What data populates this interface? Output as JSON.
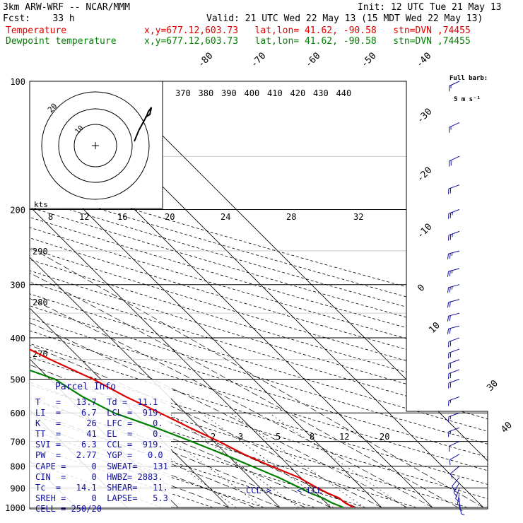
{
  "header": {
    "title": "3km ARW-WRF -- NCAR/MMM",
    "init": "Init: 12 UTC Tue 21 May 13",
    "fcst": "Fcst:    33 h",
    "valid": "Valid: 21 UTC Wed 22 May 13 (15 MDT Wed 22 May 13)",
    "temp_label": "Temperature",
    "dew_label": "Dewpoint temperature",
    "loc_info": "x,y=677.12,603.73   lat,lon= 41.62, -90.58   stn=DVN ,74455"
  },
  "barb_legend": {
    "line1": "Full barb:",
    "line2": "5 m s⁻¹"
  },
  "parcel": {
    "title": "Parcel Info",
    "rows": [
      "T   =   13.7  Td =  11.1",
      "LI  =    6.7  LCL =  919.",
      "K   =     26  LFC =    0.",
      "TT  =     41  EL  =    0.",
      "SVI =    6.3  CCL =  919.",
      "PW  =   2.77  YGP =   0.0",
      "CAPE =     0  SWEAT=   131",
      "CIN  =     0  HWBZ= 2883.",
      "Tc  =   14.1  SHEAR=   11.",
      "SREH =     0  LAPSE=   5.3",
      "CELL = 250/20"
    ]
  },
  "markers": {
    "ccl": "CCL->",
    "lcl": "<-LCL"
  },
  "hodo": {
    "ring_label": "20",
    "inner_label": "10",
    "kts_label": "kts"
  },
  "chart_data": {
    "type": "line",
    "ylabel_unit": "hPa",
    "pressure_ticks": [
      100,
      200,
      300,
      400,
      500,
      600,
      700,
      800,
      900,
      1000
    ],
    "ylim": [
      1000,
      100
    ],
    "isotherm_labels": [
      "-80",
      "-70",
      "-60",
      "-50",
      "-40",
      "-30",
      "-20",
      "-10",
      "0",
      "10",
      "30",
      "40"
    ],
    "theta_e_labels": [
      "370",
      "380",
      "390",
      "400",
      "410",
      "420",
      "430",
      "440"
    ],
    "mixing_labels_top": [
      "8",
      "12",
      "16",
      "20",
      "24",
      "28",
      "32"
    ],
    "mixing_labels_low": [
      "2",
      "3",
      "5",
      "8",
      "12",
      "20"
    ],
    "theta_labels": [
      "290",
      "280",
      "270"
    ],
    "series": [
      {
        "name": "Temperature",
        "color": "#e00000",
        "points": [
          [
            1000,
            14.5
          ],
          [
            975,
            13.7
          ],
          [
            950,
            13.5
          ],
          [
            925,
            12.2
          ],
          [
            900,
            11.2
          ],
          [
            850,
            9.6
          ],
          [
            800,
            6.4
          ],
          [
            750,
            3.4
          ],
          [
            700,
            1.0
          ],
          [
            650,
            -2.0
          ],
          [
            600,
            -5.0
          ],
          [
            550,
            -8.5
          ],
          [
            500,
            -11.5
          ],
          [
            450,
            -16.0
          ],
          [
            400,
            -20.5
          ],
          [
            350,
            -27.0
          ],
          [
            300,
            -34.5
          ],
          [
            275,
            -39.0
          ],
          [
            250,
            -42.5
          ],
          [
            225,
            -45.0
          ],
          [
            200,
            -48.5
          ],
          [
            175,
            -52.0
          ],
          [
            150,
            -55.0
          ],
          [
            125,
            -58.0
          ],
          [
            100,
            -59.0
          ]
        ]
      },
      {
        "name": "Dewpoint temperature",
        "color": "#008000",
        "points": [
          [
            1000,
            12.5
          ],
          [
            975,
            11.1
          ],
          [
            950,
            10.3
          ],
          [
            925,
            8.8
          ],
          [
            900,
            7.8
          ],
          [
            850,
            5.6
          ],
          [
            800,
            2.6
          ],
          [
            750,
            -0.6
          ],
          [
            700,
            -4.4
          ],
          [
            650,
            -8.7
          ],
          [
            600,
            -14.0
          ],
          [
            550,
            -17.0
          ],
          [
            500,
            -19.0
          ],
          [
            450,
            -26.0
          ],
          [
            400,
            -30.5
          ],
          [
            350,
            -37.0
          ],
          [
            300,
            -47.0
          ],
          [
            250,
            -63.0
          ],
          [
            225,
            -74.0
          ],
          [
            200,
            -76.0
          ],
          [
            175,
            -76.0
          ],
          [
            150,
            -79.0
          ],
          [
            125,
            -80.5
          ],
          [
            100,
            -81.0
          ]
        ]
      }
    ],
    "hodograph": [
      [
        0,
        0
      ],
      [
        3,
        8
      ],
      [
        6,
        14
      ],
      [
        8,
        18
      ],
      [
        9,
        21
      ],
      [
        11,
        24
      ],
      [
        10,
        19
      ],
      [
        7,
        17
      ]
    ],
    "wind_barbs": [
      {
        "p": 100,
        "dir": 245,
        "spd": 14
      },
      {
        "p": 125,
        "dir": 245,
        "spd": 15
      },
      {
        "p": 150,
        "dir": 245,
        "spd": 20
      },
      {
        "p": 175,
        "dir": 250,
        "spd": 20
      },
      {
        "p": 200,
        "dir": 250,
        "spd": 25
      },
      {
        "p": 225,
        "dir": 250,
        "spd": 25
      },
      {
        "p": 250,
        "dir": 255,
        "spd": 25
      },
      {
        "p": 275,
        "dir": 255,
        "spd": 25
      },
      {
        "p": 300,
        "dir": 255,
        "spd": 25
      },
      {
        "p": 325,
        "dir": 255,
        "spd": 20
      },
      {
        "p": 350,
        "dir": 255,
        "spd": 20
      },
      {
        "p": 375,
        "dir": 255,
        "spd": 20
      },
      {
        "p": 400,
        "dir": 250,
        "spd": 20
      },
      {
        "p": 425,
        "dir": 250,
        "spd": 20
      },
      {
        "p": 450,
        "dir": 250,
        "spd": 20
      },
      {
        "p": 475,
        "dir": 250,
        "spd": 20
      },
      {
        "p": 500,
        "dir": 250,
        "spd": 20
      },
      {
        "p": 550,
        "dir": 250,
        "spd": 15
      },
      {
        "p": 600,
        "dir": 250,
        "spd": 15
      },
      {
        "p": 650,
        "dir": 250,
        "spd": 15
      },
      {
        "p": 700,
        "dir": 245,
        "spd": 10
      },
      {
        "p": 750,
        "dir": 240,
        "spd": 10
      },
      {
        "p": 800,
        "dir": 230,
        "spd": 10
      },
      {
        "p": 850,
        "dir": 220,
        "spd": 10
      },
      {
        "p": 875,
        "dir": 210,
        "spd": 10
      },
      {
        "p": 900,
        "dir": 200,
        "spd": 10
      },
      {
        "p": 925,
        "dir": 190,
        "spd": 5
      },
      {
        "p": 950,
        "dir": 180,
        "spd": 5
      },
      {
        "p": 975,
        "dir": 170,
        "spd": 5
      }
    ]
  }
}
